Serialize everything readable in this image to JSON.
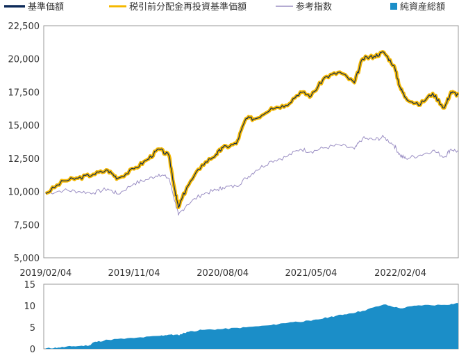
{
  "chart_data": [
    {
      "type": "line",
      "legend_position": "top",
      "grid": false,
      "ylim": [
        5000,
        22500
      ],
      "yticks": [
        "5,000",
        "7,500",
        "10,000",
        "12,500",
        "15,000",
        "17,500",
        "20,000",
        "22,500"
      ],
      "ytick_values": [
        5000,
        7500,
        10000,
        12500,
        15000,
        17500,
        20000,
        22500
      ],
      "xlim": [
        "2019-01-29",
        "2022-08-02"
      ],
      "xticks": [
        "2019/02/04",
        "2019/11/04",
        "2020/08/04",
        "2021/05/04",
        "2022/02/04"
      ],
      "xtick_dates": [
        "2019-02-04",
        "2019-11-04",
        "2020-08-04",
        "2021-05-04",
        "2022-02-04"
      ],
      "colors": {
        "nav": "#0d2a59",
        "reinvested": "#f5b800",
        "reference": "#9b8fc4"
      },
      "series": [
        {
          "name": "基準価額",
          "x": [
            "2019-02-04",
            "2019-04-01",
            "2019-05-15",
            "2019-07-01",
            "2019-08-15",
            "2019-09-15",
            "2019-11-04",
            "2019-12-15",
            "2020-01-20",
            "2020-02-20",
            "2020-03-10",
            "2020-03-20",
            "2020-04-15",
            "2020-06-01",
            "2020-07-15",
            "2020-08-04",
            "2020-09-15",
            "2020-10-15",
            "2020-11-15",
            "2021-01-01",
            "2021-02-15",
            "2021-04-01",
            "2021-05-04",
            "2021-06-15",
            "2021-08-01",
            "2021-09-15",
            "2021-10-10",
            "2021-11-15",
            "2021-12-15",
            "2022-01-15",
            "2022-02-04",
            "2022-02-20",
            "2022-04-01",
            "2022-05-15",
            "2022-06-20",
            "2022-07-10",
            "2022-08-02"
          ],
          "values": [
            9850,
            10800,
            11000,
            11300,
            11600,
            11000,
            11700,
            12400,
            13200,
            12700,
            10000,
            8800,
            10300,
            12000,
            12800,
            13300,
            13600,
            15500,
            15500,
            16300,
            16500,
            17500,
            17200,
            18600,
            19000,
            18200,
            20000,
            20200,
            20500,
            19500,
            17800,
            17100,
            16500,
            17400,
            16300,
            17500,
            17300
          ]
        },
        {
          "name": "税引前分配金再投資基準価額",
          "x": [
            "2019-02-04",
            "2019-04-01",
            "2019-05-15",
            "2019-07-01",
            "2019-08-15",
            "2019-09-15",
            "2019-11-04",
            "2019-12-15",
            "2020-01-20",
            "2020-02-20",
            "2020-03-10",
            "2020-03-20",
            "2020-04-15",
            "2020-06-01",
            "2020-07-15",
            "2020-08-04",
            "2020-09-15",
            "2020-10-15",
            "2020-11-15",
            "2021-01-01",
            "2021-02-15",
            "2021-04-01",
            "2021-05-04",
            "2021-06-15",
            "2021-08-01",
            "2021-09-15",
            "2021-10-10",
            "2021-11-15",
            "2021-12-15",
            "2022-01-15",
            "2022-02-04",
            "2022-02-20",
            "2022-04-01",
            "2022-05-15",
            "2022-06-20",
            "2022-07-10",
            "2022-08-02"
          ],
          "values": [
            9850,
            10800,
            11000,
            11300,
            11600,
            11000,
            11700,
            12400,
            13200,
            12700,
            10000,
            8800,
            10300,
            12000,
            12800,
            13300,
            13600,
            15500,
            15500,
            16300,
            16500,
            17500,
            17200,
            18600,
            19000,
            18200,
            20000,
            20200,
            20500,
            19500,
            17800,
            17100,
            16500,
            17400,
            16300,
            17500,
            17300
          ]
        },
        {
          "name": "参考指数",
          "x": [
            "2019-02-04",
            "2019-04-01",
            "2019-05-15",
            "2019-07-01",
            "2019-08-15",
            "2019-09-15",
            "2019-11-04",
            "2019-12-15",
            "2020-01-20",
            "2020-02-20",
            "2020-03-10",
            "2020-03-20",
            "2020-04-15",
            "2020-06-01",
            "2020-07-15",
            "2020-08-04",
            "2020-09-15",
            "2020-10-15",
            "2020-11-15",
            "2021-01-01",
            "2021-02-15",
            "2021-04-01",
            "2021-05-04",
            "2021-06-15",
            "2021-08-01",
            "2021-09-15",
            "2021-10-10",
            "2021-11-15",
            "2021-12-15",
            "2022-01-15",
            "2022-02-04",
            "2022-02-20",
            "2022-04-01",
            "2022-05-15",
            "2022-06-20",
            "2022-07-10",
            "2022-08-02"
          ],
          "values": [
            9850,
            10100,
            10000,
            9900,
            10200,
            9800,
            10600,
            10900,
            11300,
            11000,
            9200,
            8200,
            9000,
            9800,
            10100,
            10300,
            10400,
            11000,
            11600,
            12300,
            12600,
            13200,
            13000,
            13300,
            13500,
            13200,
            14000,
            13900,
            14100,
            13500,
            12700,
            12500,
            12700,
            13100,
            12600,
            13200,
            13000
          ]
        }
      ]
    },
    {
      "type": "area",
      "legend_position": "top-right",
      "grid": false,
      "ylim": [
        0,
        15
      ],
      "yticks": [
        "0",
        "5",
        "10",
        "15"
      ],
      "ytick_values": [
        0,
        5,
        10,
        15
      ],
      "xlim": [
        "2019-01-29",
        "2022-08-02"
      ],
      "color": "#1b8ec8",
      "series": [
        {
          "name": "純資産総額",
          "x": [
            "2019-02-04",
            "2019-03-15",
            "2019-05-01",
            "2019-06-20",
            "2019-07-01",
            "2019-08-15",
            "2019-11-04",
            "2020-01-20",
            "2020-02-20",
            "2020-03-20",
            "2020-04-15",
            "2020-06-01",
            "2020-08-04",
            "2020-10-15",
            "2021-01-01",
            "2021-03-01",
            "2021-05-04",
            "2021-07-01",
            "2021-08-15",
            "2021-10-10",
            "2021-12-15",
            "2022-02-04",
            "2022-04-01",
            "2022-06-20",
            "2022-08-02"
          ],
          "values": [
            0.1,
            0.3,
            0.6,
            0.8,
            1.5,
            2.1,
            2.5,
            3.0,
            3.3,
            3.2,
            3.9,
            4.4,
            4.6,
            5.0,
            5.5,
            6.2,
            6.5,
            7.4,
            8.0,
            8.8,
            10.3,
            9.4,
            10.1,
            10.2,
            10.6
          ]
        }
      ]
    }
  ]
}
